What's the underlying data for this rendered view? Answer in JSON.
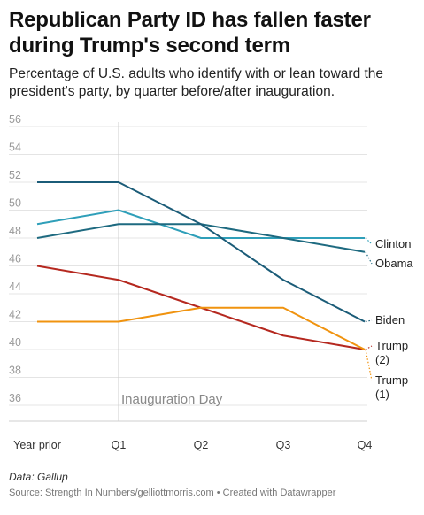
{
  "header": {
    "title": "Republican Party ID has fallen faster during Trump's second term",
    "subtitle": "Percentage of U.S. adults who identify with or lean toward the president's party, by quarter before/after inauguration."
  },
  "chart_data": {
    "type": "line",
    "x": [
      "Year prior",
      "Q1",
      "Q2",
      "Q3",
      "Q4"
    ],
    "ylim": [
      35,
      56
    ],
    "yticks": [
      36,
      38,
      40,
      42,
      44,
      46,
      48,
      50,
      52,
      54,
      56
    ],
    "annotations": [
      {
        "text": "Inauguration Day",
        "x": "Q1"
      }
    ],
    "grid": true,
    "legend": "direct labels at line ends",
    "series": [
      {
        "name": "Clinton",
        "values": [
          49,
          50,
          48,
          48,
          48
        ],
        "color": "#2f9fb9"
      },
      {
        "name": "Obama",
        "values": [
          48,
          49,
          49,
          48,
          47
        ],
        "color": "#1e6a80"
      },
      {
        "name": "Biden",
        "values": [
          52,
          52,
          49,
          45,
          42
        ],
        "color": "#1b5c78"
      },
      {
        "name": "Trump (2)",
        "values": [
          46,
          45,
          43,
          41,
          40
        ],
        "color": "#b5281f"
      },
      {
        "name": "Trump (1)",
        "values": [
          42,
          42,
          43,
          43,
          40
        ],
        "color": "#f0930f"
      }
    ],
    "labels": [
      {
        "series": "Clinton",
        "lines": [
          "Clinton"
        ]
      },
      {
        "series": "Obama",
        "lines": [
          "Obama"
        ]
      },
      {
        "series": "Biden",
        "lines": [
          "Biden"
        ]
      },
      {
        "series": "Trump (2)",
        "lines": [
          "Trump",
          "(2)"
        ]
      },
      {
        "series": "Trump (1)",
        "lines": [
          "Trump",
          "(1)"
        ]
      }
    ]
  },
  "footer": {
    "data_source": "Data: Gallup",
    "credit": "Source: Strength In Numbers/gelliottmorris.com • Created with Datawrapper"
  }
}
